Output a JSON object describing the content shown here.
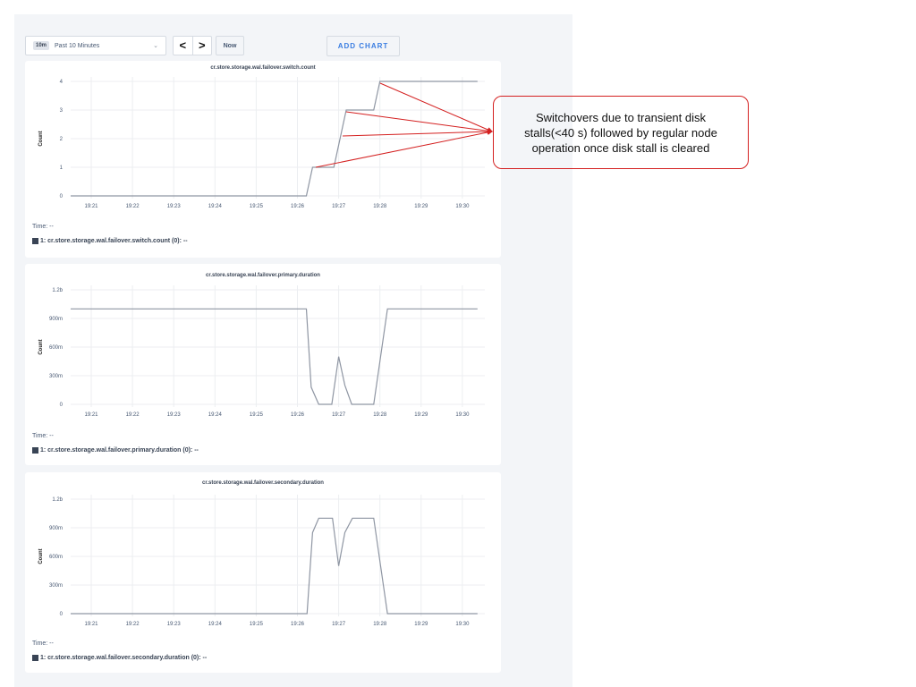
{
  "toolbar": {
    "range_badge": "10m",
    "range_label": "Past 10 Minutes",
    "prev_label": "<",
    "next_label": ">",
    "now_label": "Now",
    "add_chart_label": "ADD CHART"
  },
  "annotation": {
    "text": "Switchovers due to transient disk stalls(<40 s) followed by regular node operation once disk stall is cleared",
    "color": "#d42020"
  },
  "line_color": "#8f96a3",
  "chart_data": [
    {
      "type": "line",
      "title": "cr.store.storage.wal.failover.switch.count",
      "ylabel": "Count",
      "ylim": [
        0,
        4
      ],
      "yticks": [
        "0",
        "1",
        "2",
        "3",
        "4"
      ],
      "ytick_values": [
        0,
        1,
        2,
        3,
        4
      ],
      "xticks": [
        "19:21",
        "19:22",
        "19:23",
        "19:24",
        "19:25",
        "19:26",
        "19:27",
        "19:28",
        "19:29",
        "19:30"
      ],
      "xlim": [
        "19:20:30",
        "19:30:30"
      ],
      "grid": true,
      "time_label": "Time:  --",
      "legend": "1: cr.store.storage.wal.failover.switch.count (0):  --",
      "series": [
        {
          "x": [
            "19:20:30",
            "19:26:13",
            "19:26:22",
            "19:26:53",
            "19:27:11",
            "19:27:51",
            "19:28:00",
            "19:30:22"
          ],
          "y": [
            0,
            0,
            1,
            1,
            3,
            3,
            4,
            4
          ]
        }
      ]
    },
    {
      "type": "line",
      "title": "cr.store.storage.wal.failover.primary.duration",
      "ylabel": "Count",
      "ylim": [
        0,
        1.2
      ],
      "yticks": [
        "0",
        "300m",
        "600m",
        "900m",
        "1.2b"
      ],
      "ytick_values": [
        0,
        0.3,
        0.6,
        0.9,
        1.2
      ],
      "xticks": [
        "19:21",
        "19:22",
        "19:23",
        "19:24",
        "19:25",
        "19:26",
        "19:27",
        "19:28",
        "19:29",
        "19:30"
      ],
      "xlim": [
        "19:20:30",
        "19:30:30"
      ],
      "grid": true,
      "time_label": "Time:  --",
      "legend": "1: cr.store.storage.wal.failover.primary.duration (0):  --",
      "series": [
        {
          "x": [
            "19:20:30",
            "19:26:13",
            "19:26:20",
            "19:26:31",
            "19:26:50",
            "19:27:00",
            "19:27:09",
            "19:27:19",
            "19:27:51",
            "19:28:01",
            "19:28:11",
            "19:30:22"
          ],
          "y": [
            1,
            1,
            0.18,
            0,
            0,
            0.5,
            0.2,
            0,
            0,
            0.5,
            1,
            1
          ]
        }
      ]
    },
    {
      "type": "line",
      "title": "cr.store.storage.wal.failover.secondary.duration",
      "ylabel": "Count",
      "ylim": [
        0,
        1.2
      ],
      "yticks": [
        "0",
        "300m",
        "600m",
        "900m",
        "1.2b"
      ],
      "ytick_values": [
        0,
        0.3,
        0.6,
        0.9,
        1.2
      ],
      "xticks": [
        "19:21",
        "19:22",
        "19:23",
        "19:24",
        "19:25",
        "19:26",
        "19:27",
        "19:28",
        "19:29",
        "19:30"
      ],
      "xlim": [
        "19:20:30",
        "19:30:30"
      ],
      "grid": true,
      "time_label": "Time:  --",
      "legend": "1: cr.store.storage.wal.failover.secondary.duration (0):  --",
      "series": [
        {
          "x": [
            "19:20:30",
            "19:26:14",
            "19:26:22",
            "19:26:31",
            "19:26:51",
            "19:27:00",
            "19:27:09",
            "19:27:20",
            "19:27:51",
            "19:28:01",
            "19:28:11",
            "19:30:22"
          ],
          "y": [
            0,
            0,
            0.85,
            1,
            1,
            0.5,
            0.85,
            1,
            1,
            0.5,
            0,
            0
          ]
        }
      ]
    }
  ]
}
